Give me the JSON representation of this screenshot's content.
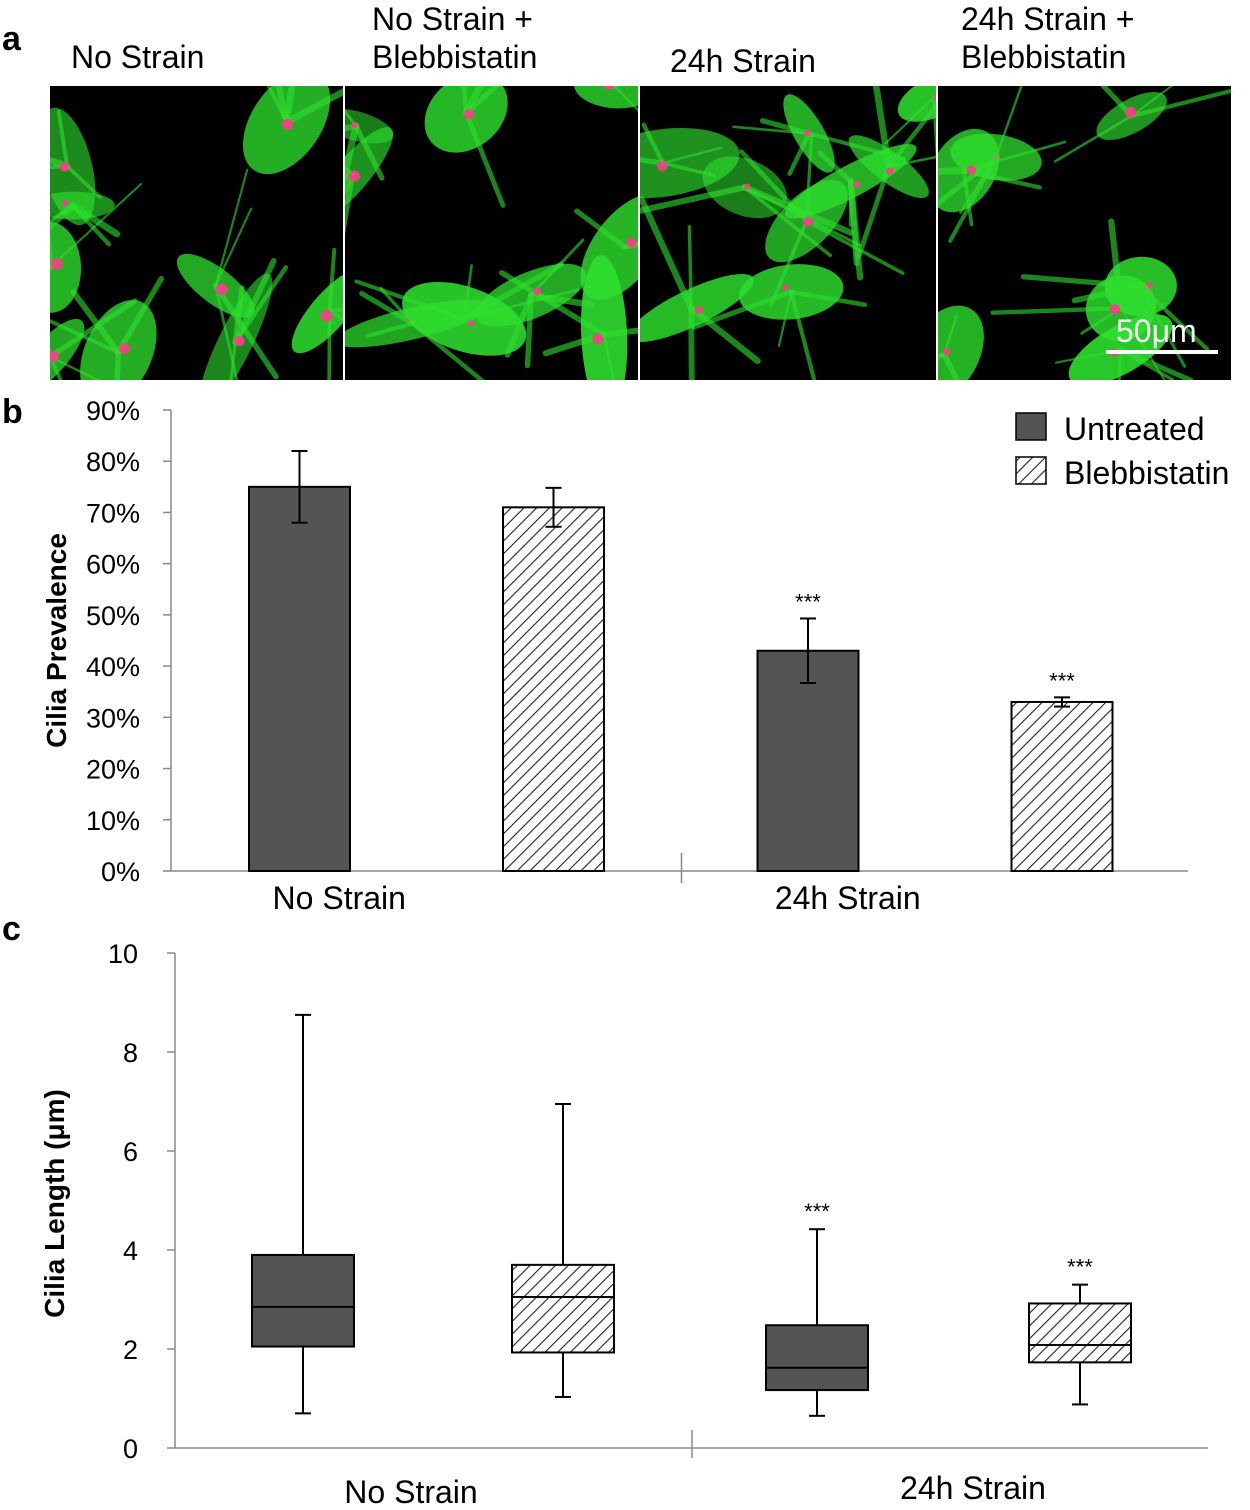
{
  "panel_labels": {
    "a": "a",
    "b": "b",
    "c": "c"
  },
  "panel_a": {
    "conditions": [
      {
        "title_line1": "No Strain",
        "title_line2": ""
      },
      {
        "title_line1": "No Strain +",
        "title_line2": "Blebbistatin"
      },
      {
        "title_line1": "24h Strain",
        "title_line2": ""
      },
      {
        "title_line1": "24h Strain +",
        "title_line2": "Blebbistatin"
      }
    ],
    "scale_bar_label": "50μm",
    "colors": {
      "actin": "#2ee02e",
      "cilia": "#ff3a8c",
      "background": "#000000"
    }
  },
  "chart_data": [
    {
      "type": "bar",
      "categories": [
        "No Strain",
        "24h Strain"
      ],
      "series": [
        {
          "name": "Untreated",
          "values": [
            0.75,
            0.43
          ],
          "error": [
            0.07,
            0.063
          ],
          "significance": [
            "",
            "***"
          ]
        },
        {
          "name": "Blebbistatin",
          "values": [
            0.71,
            0.33
          ],
          "error": [
            0.038,
            0.009
          ],
          "significance": [
            "",
            "***"
          ]
        }
      ],
      "ylabel": "Cilia Prevalence",
      "ylim": [
        0,
        0.9
      ],
      "yticks": [
        0,
        0.1,
        0.2,
        0.3,
        0.4,
        0.5,
        0.6,
        0.7,
        0.8,
        0.9
      ],
      "ytick_labels": [
        "0%",
        "10%",
        "20%",
        "30%",
        "40%",
        "50%",
        "60%",
        "70%",
        "80%",
        "90%"
      ],
      "legend_position": "top-right",
      "colors": {
        "Untreated": "#545454",
        "Blebbistatin": "hatched"
      }
    },
    {
      "type": "box",
      "categories": [
        "No Strain",
        "24h Strain"
      ],
      "series": [
        {
          "name": "Untreated",
          "boxes": [
            {
              "min": 0.7,
              "q1": 2.05,
              "median": 2.85,
              "q3": 3.9,
              "max": 8.75,
              "significance": ""
            },
            {
              "min": 0.65,
              "q1": 1.17,
              "median": 1.62,
              "q3": 2.48,
              "max": 4.42,
              "significance": "***"
            }
          ]
        },
        {
          "name": "Blebbistatin",
          "boxes": [
            {
              "min": 1.03,
              "q1": 1.93,
              "median": 3.05,
              "q3": 3.7,
              "max": 6.95,
              "significance": ""
            },
            {
              "min": 0.88,
              "q1": 1.73,
              "median": 2.08,
              "q3": 2.92,
              "max": 3.3,
              "significance": "***"
            }
          ]
        }
      ],
      "ylabel": "Cilia Length (μm)",
      "ylim": [
        0,
        10
      ],
      "yticks": [
        0,
        2,
        4,
        6,
        8,
        10
      ],
      "ytick_labels": [
        "0",
        "2",
        "4",
        "6",
        "8",
        "10"
      ]
    }
  ]
}
